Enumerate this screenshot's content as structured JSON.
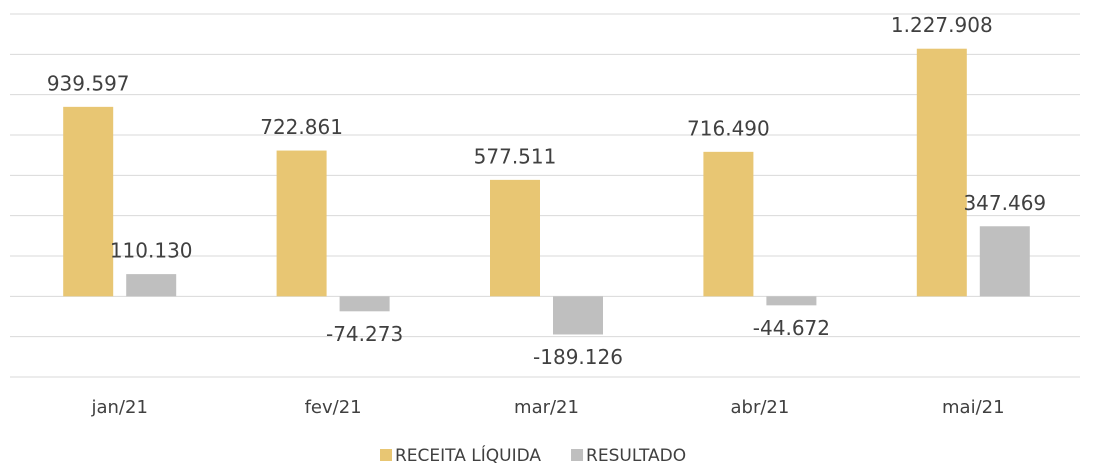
{
  "chart_data": {
    "type": "bar",
    "categories": [
      "jan/21",
      "fev/21",
      "mar/21",
      "abr/21",
      "mai/21"
    ],
    "series": [
      {
        "name": "RECEITA LÍQUIDA",
        "color": "#e8c673",
        "values": [
          939597,
          722861,
          577511,
          716490,
          1227908
        ],
        "value_labels": [
          "939.597",
          "722.861",
          "577.511",
          "716.490",
          "1.227.908"
        ]
      },
      {
        "name": "RESULTADO",
        "color": "#bfbfbf",
        "values": [
          110130,
          -74273,
          -189126,
          -44672,
          347469
        ],
        "value_labels": [
          "110.130",
          "-74.273",
          "-189.126",
          "-44.672",
          "347.469"
        ]
      }
    ],
    "ylim": [
      -400000,
      1400000
    ],
    "yticks": [
      -400000,
      -200000,
      0,
      200000,
      400000,
      600000,
      800000,
      1000000,
      1200000,
      1400000
    ],
    "grid": true,
    "legend": "bottom"
  }
}
